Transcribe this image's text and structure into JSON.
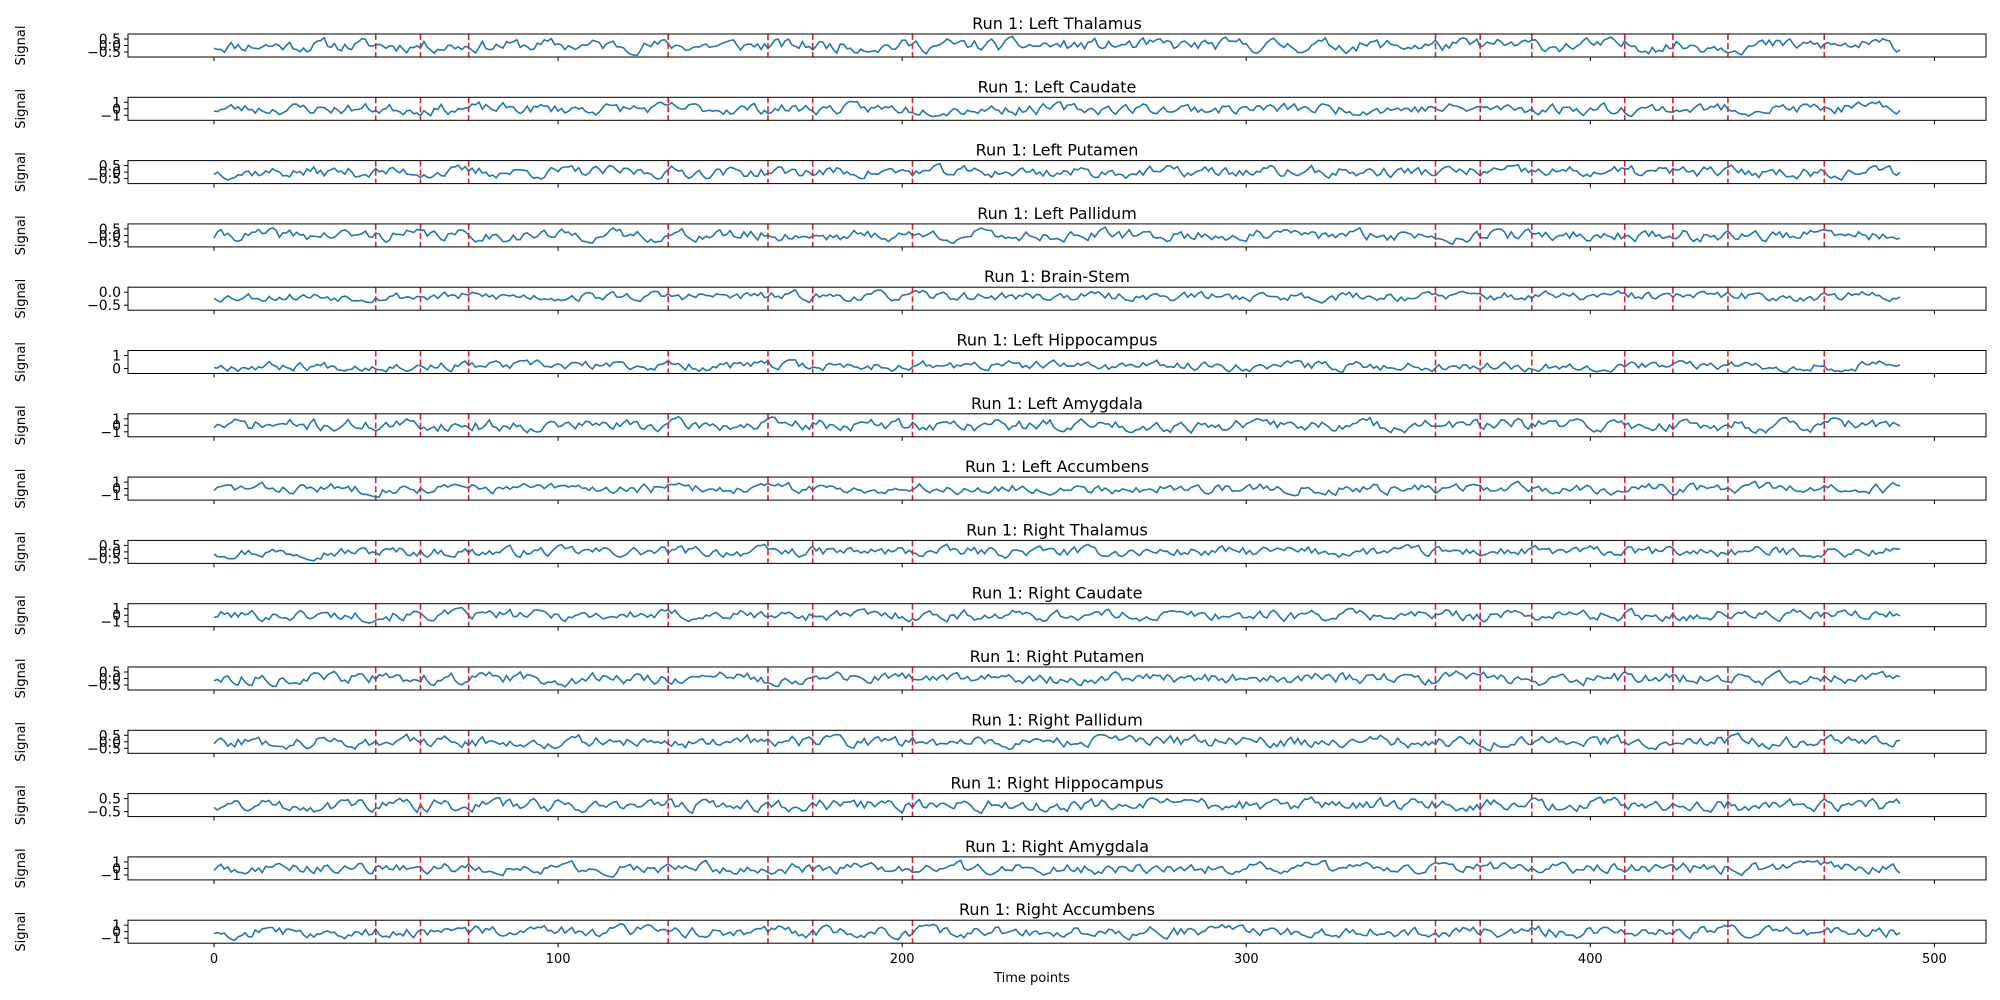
{
  "chart_data": {
    "type": "line",
    "xlabel": "Time points",
    "ylabel": "Signal",
    "xlim": [
      -25,
      515
    ],
    "x_ticks": [
      0,
      100,
      200,
      300,
      400,
      500
    ],
    "n_points": 491,
    "event_markers": [
      47,
      60,
      74,
      132,
      161,
      174,
      203,
      355,
      368,
      383,
      410,
      424,
      440,
      468
    ],
    "colors": {
      "line": "#1f77b4",
      "marker": "#d62728",
      "axes": "#000000"
    },
    "panels": [
      {
        "title": "Run 1: Left Thalamus",
        "yticks": [
          "0.5",
          "0.0",
          "−0.5"
        ],
        "ylim": [
          -0.7,
          0.7
        ],
        "amp": 0.33,
        "seed": 11
      },
      {
        "title": "Run 1: Left Caudate",
        "yticks": [
          "1",
          "0",
          "−1"
        ],
        "ylim": [
          -1.2,
          1.2
        ],
        "amp": 0.45,
        "seed": 23
      },
      {
        "title": "Run 1: Left Putamen",
        "yticks": [
          "0.5",
          "0.0",
          "−0.5"
        ],
        "ylim": [
          -0.7,
          0.7
        ],
        "amp": 0.28,
        "seed": 37
      },
      {
        "title": "Run 1: Left Pallidum",
        "yticks": [
          "0.5",
          "0.0",
          "−0.5"
        ],
        "ylim": [
          -0.7,
          0.7
        ],
        "amp": 0.3,
        "seed": 41
      },
      {
        "title": "Run 1: Brain-Stem",
        "yticks": [
          "0.0",
          "−0.5"
        ],
        "ylim": [
          -0.6,
          0.4
        ],
        "amp": 0.16,
        "seed": 53
      },
      {
        "title": "Run 1: Left Hippocampus",
        "yticks": [
          "1",
          "0"
        ],
        "ylim": [
          -0.6,
          1.2
        ],
        "amp": 0.3,
        "seed": 67
      },
      {
        "title": "Run 1: Left Amygdala",
        "yticks": [
          "1",
          "0",
          "−1"
        ],
        "ylim": [
          -1.2,
          1.2
        ],
        "amp": 0.5,
        "seed": 71
      },
      {
        "title": "Run 1: Left Accumbens",
        "yticks": [
          "1",
          "0",
          "−1"
        ],
        "ylim": [
          -1.2,
          1.2
        ],
        "amp": 0.5,
        "seed": 83
      },
      {
        "title": "Run 1: Right Thalamus",
        "yticks": [
          "0.5",
          "0.0",
          "−0.5"
        ],
        "ylim": [
          -0.7,
          0.7
        ],
        "amp": 0.3,
        "seed": 97
      },
      {
        "title": "Run 1: Right Caudate",
        "yticks": [
          "1",
          "0",
          "−1"
        ],
        "ylim": [
          -1.2,
          1.2
        ],
        "amp": 0.45,
        "seed": 101
      },
      {
        "title": "Run 1: Right Putamen",
        "yticks": [
          "0.5",
          "0.0",
          "−0.5"
        ],
        "ylim": [
          -0.7,
          0.7
        ],
        "amp": 0.28,
        "seed": 113
      },
      {
        "title": "Run 1: Right Pallidum",
        "yticks": [
          "0.5",
          "0.0",
          "−0.5"
        ],
        "ylim": [
          -0.7,
          0.7
        ],
        "amp": 0.3,
        "seed": 127
      },
      {
        "title": "Run 1: Right Hippocampus",
        "yticks": [
          "0.5",
          "−0.5"
        ],
        "ylim": [
          -0.7,
          0.7
        ],
        "amp": 0.28,
        "seed": 131
      },
      {
        "title": "Run 1: Right Amygdala",
        "yticks": [
          "1",
          "0",
          "−1"
        ],
        "ylim": [
          -1.2,
          1.2
        ],
        "amp": 0.5,
        "seed": 149
      },
      {
        "title": "Run 1: Right Accumbens",
        "yticks": [
          "1",
          "0",
          "−1"
        ],
        "ylim": [
          -1.2,
          1.2
        ],
        "amp": 0.5,
        "seed": 157
      }
    ]
  }
}
